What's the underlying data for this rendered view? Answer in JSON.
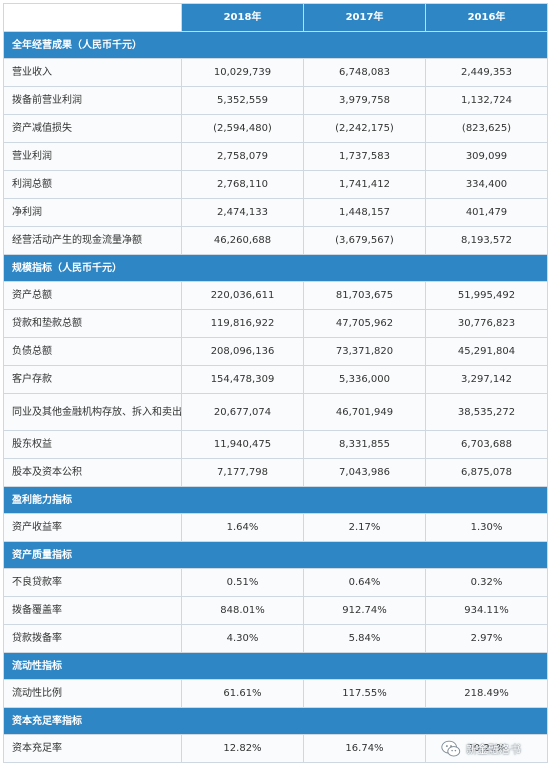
{
  "header": {
    "years": [
      "2018年",
      "2017年",
      "2016年"
    ]
  },
  "sections": [
    {
      "title": "全年经营成果（人民币千元）",
      "rows": [
        {
          "label": "营业收入",
          "values": [
            "10,029,739",
            "6,748,083",
            "2,449,353"
          ]
        },
        {
          "label": "拨备前营业利润",
          "values": [
            "5,352,559",
            "3,979,758",
            "1,132,724"
          ]
        },
        {
          "label": "资产减值损失",
          "values": [
            "(2,594,480)",
            "(2,242,175)",
            "(823,625)"
          ]
        },
        {
          "label": "营业利润",
          "values": [
            "2,758,079",
            "1,737,583",
            "309,099"
          ]
        },
        {
          "label": "利润总额",
          "values": [
            "2,768,110",
            "1,741,412",
            "334,400"
          ]
        },
        {
          "label": "净利润",
          "values": [
            "2,474,133",
            "1,448,157",
            "401,479"
          ]
        },
        {
          "label": "经营活动产生的现金流量净额",
          "values": [
            "46,260,688",
            "(3,679,567)",
            "8,193,572"
          ]
        }
      ]
    },
    {
      "title": "规模指标（人民币千元）",
      "rows": [
        {
          "label": "资产总额",
          "values": [
            "220,036,611",
            "81,703,675",
            "51,995,492"
          ]
        },
        {
          "label": "贷款和垫款总额",
          "indent": true,
          "values": [
            "119,816,922",
            "47,705,962",
            "30,776,823"
          ]
        },
        {
          "label": "负债总额",
          "values": [
            "208,096,136",
            "73,371,820",
            "45,291,804"
          ]
        },
        {
          "label": "客户存款",
          "indent": true,
          "values": [
            "154,478,309",
            "5,336,000",
            "3,297,142"
          ]
        },
        {
          "label": "同业及其他金融机构存放、拆入和卖出回购金融资产款项",
          "indent": true,
          "tall": true,
          "values": [
            "20,677,074",
            "46,701,949",
            "38,535,272"
          ]
        },
        {
          "label": "股东权益",
          "values": [
            "11,940,475",
            "8,331,855",
            "6,703,688"
          ]
        },
        {
          "label": "股本及资本公积",
          "indent": true,
          "values": [
            "7,177,798",
            "7,043,986",
            "6,875,078"
          ]
        }
      ]
    },
    {
      "title": "盈利能力指标",
      "rows": [
        {
          "label": "资产收益率",
          "values": [
            "1.64%",
            "2.17%",
            "1.30%"
          ]
        }
      ]
    },
    {
      "title": "资产质量指标",
      "rows": [
        {
          "label": "不良贷款率",
          "values": [
            "0.51%",
            "0.64%",
            "0.32%"
          ]
        },
        {
          "label": "拨备覆盖率",
          "values": [
            "848.01%",
            "912.74%",
            "934.11%"
          ]
        },
        {
          "label": "贷款拨备率",
          "values": [
            "4.30%",
            "5.84%",
            "2.97%"
          ]
        }
      ]
    },
    {
      "title": "流动性指标",
      "rows": [
        {
          "label": "流动性比例",
          "values": [
            "61.61%",
            "117.55%",
            "218.49%"
          ]
        }
      ]
    },
    {
      "title": "资本充足率指标",
      "rows": [
        {
          "label": "资本充足率",
          "values": [
            "12.82%",
            "16.74%",
            "20.21%"
          ]
        }
      ]
    }
  ],
  "watermark": {
    "text": "新金融洛书",
    "icon": "wechat-icon"
  },
  "colors": {
    "header_blue": "#2f86c4",
    "border": "#cfd8e0"
  }
}
